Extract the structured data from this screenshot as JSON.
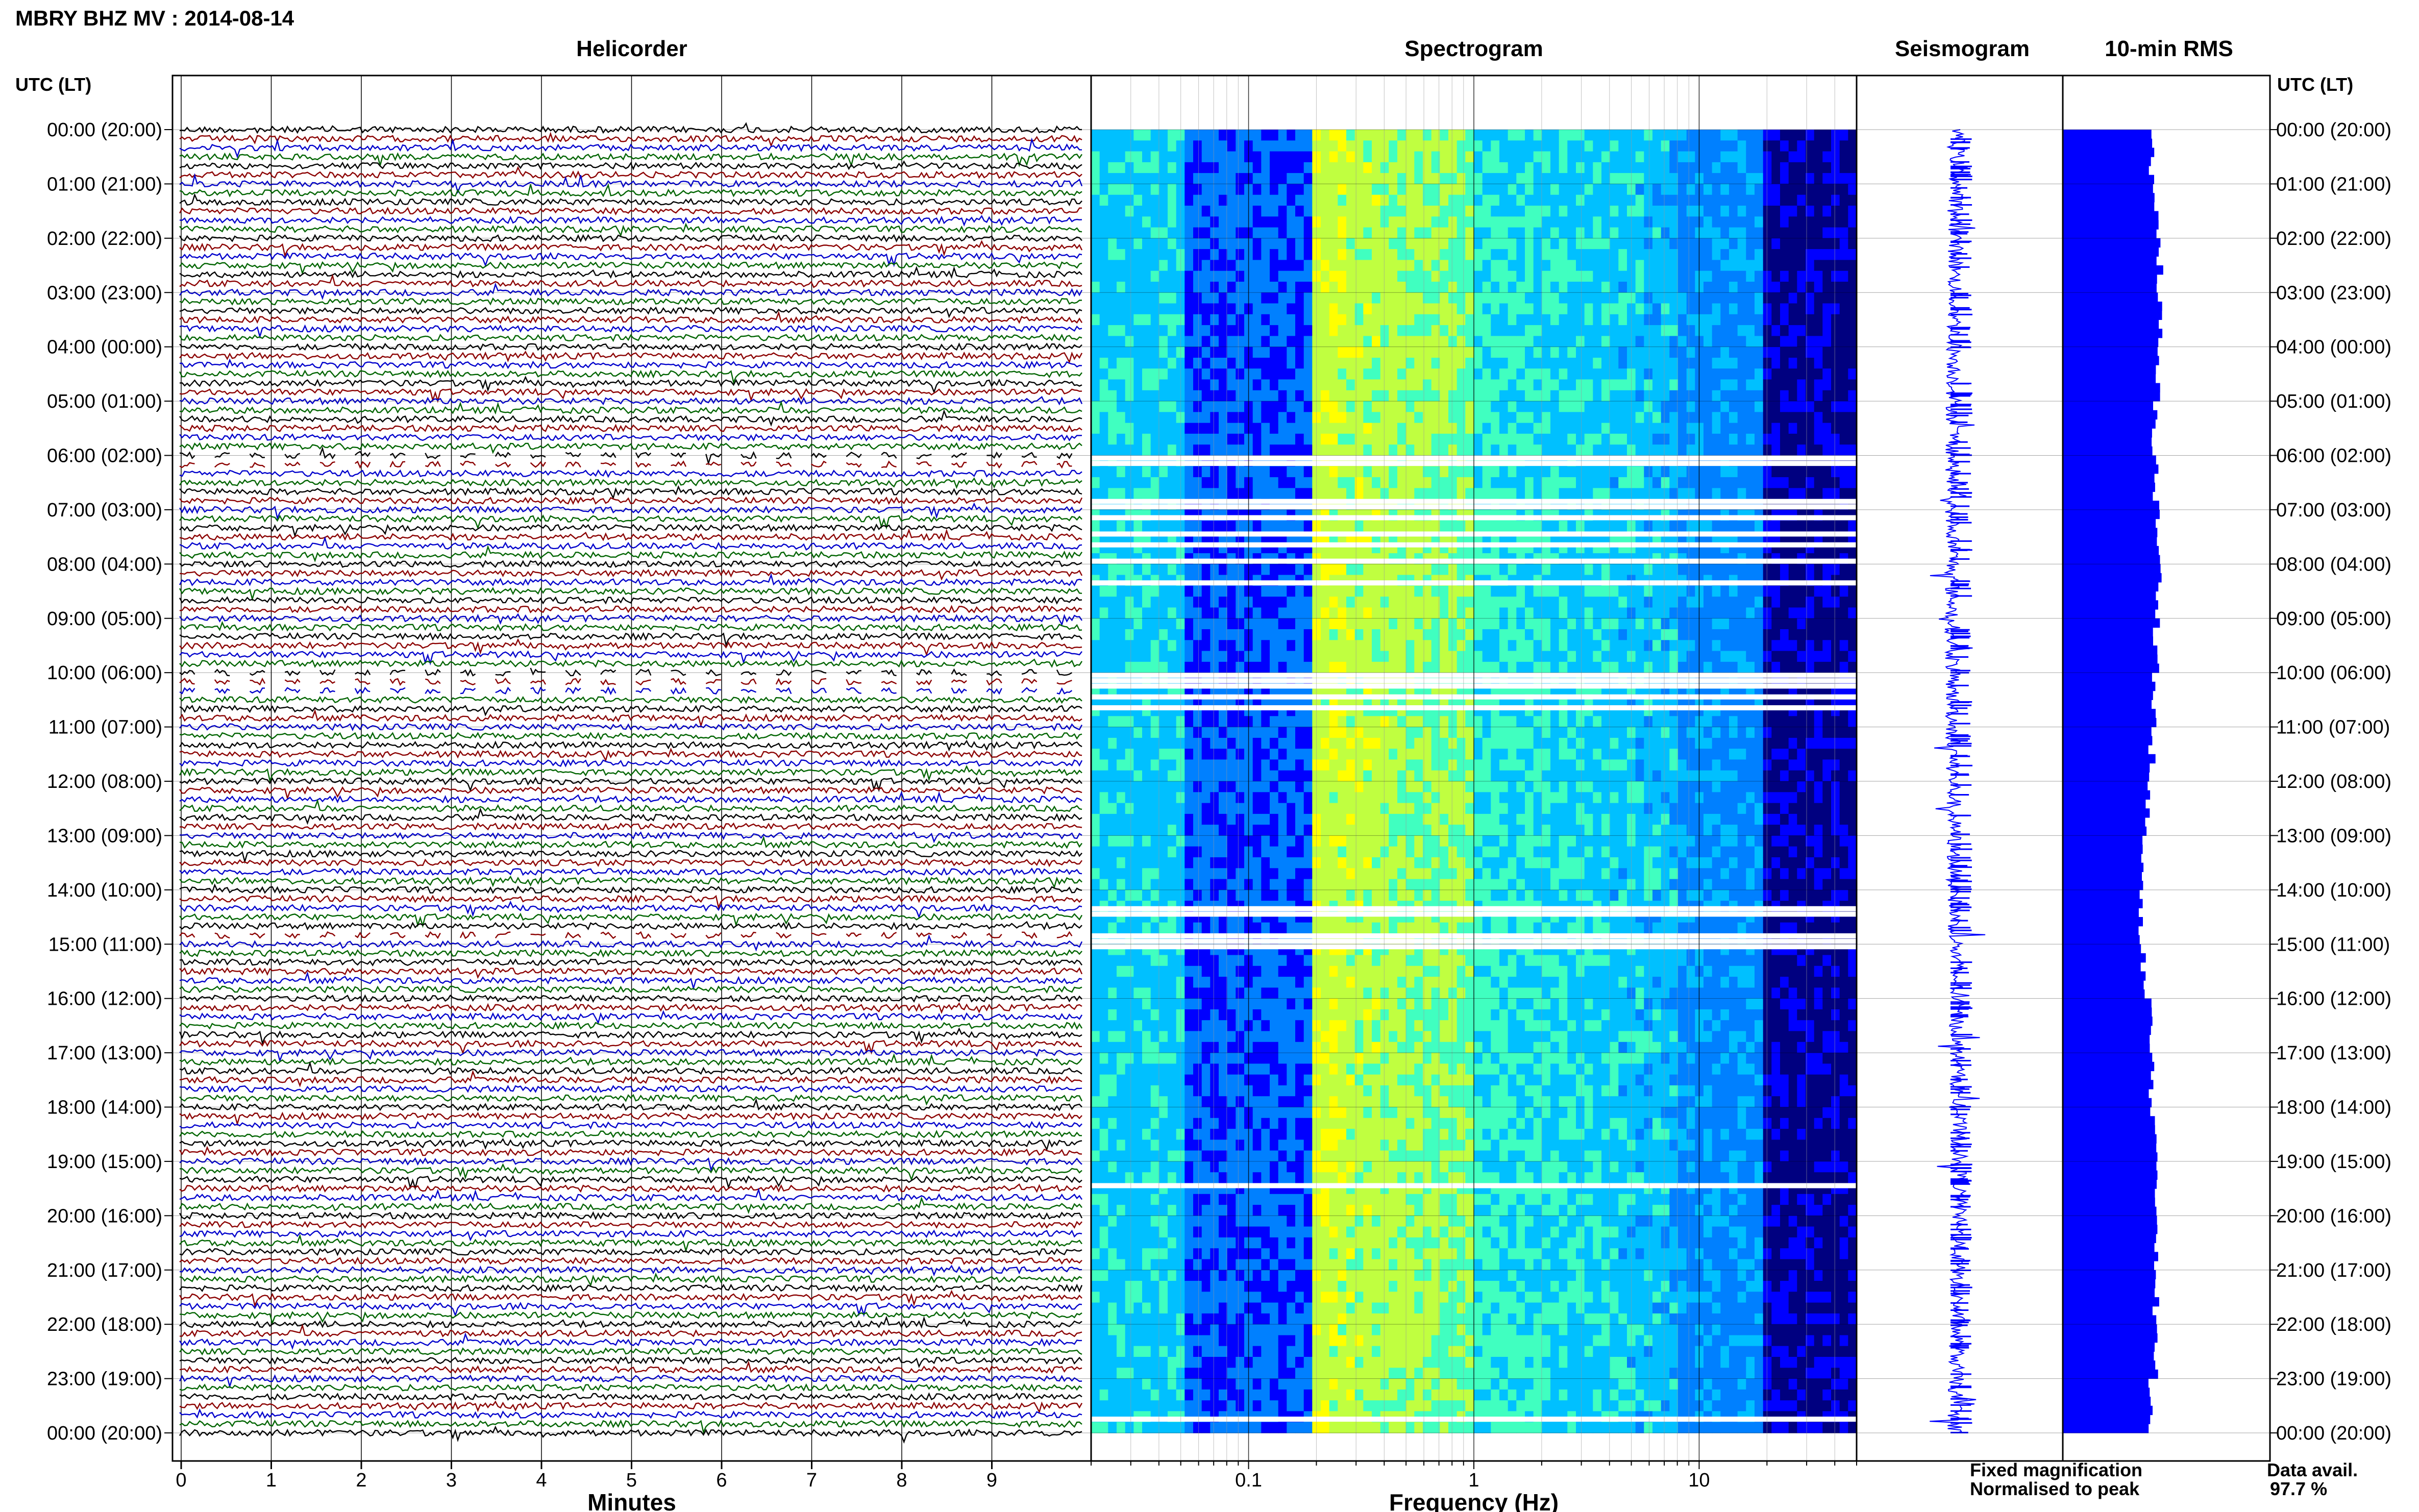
{
  "title": "MBRY BHZ MV : 2014-08-14",
  "panels": {
    "helicorder": "Helicorder",
    "spectrogram": "Spectrogram",
    "seismogram": "Seismogram",
    "rms": "10-min RMS"
  },
  "axis_labels": {
    "time_header_left": "UTC (LT)",
    "time_header_right": "UTC (LT)",
    "minutes": "Minutes",
    "frequency": "Frequency (Hz)"
  },
  "footer": {
    "fixed_magnification": "Fixed magnification",
    "normalised_to_peak": "Normalised to peak",
    "data_avail_label": "Data avail.",
    "data_avail_value": "97.7 %"
  },
  "colors": {
    "trace_black": "#000000",
    "trace_red": "#8b0000",
    "trace_blue": "#0000cc",
    "trace_green": "#006400",
    "rms_blue": "#0000ff",
    "legend_blue": "#0000ff",
    "legend_red": "#ff0000"
  },
  "chart_data": [
    {
      "type": "line",
      "title": "Helicorder",
      "xlabel": "Minutes",
      "x_ticks": [
        "0",
        "1",
        "2",
        "3",
        "4",
        "5",
        "6",
        "7",
        "8",
        "9"
      ],
      "xlim": [
        0,
        10
      ],
      "trace_colour_cycle": [
        "black",
        "red",
        "blue",
        "green"
      ],
      "rows_per_hour": 6,
      "hour_ticks": [
        "00:00 (20:00)",
        "01:00 (21:00)",
        "02:00 (22:00)",
        "03:00 (23:00)",
        "04:00 (00:00)",
        "05:00 (01:00)",
        "06:00 (02:00)",
        "07:00 (03:00)",
        "08:00 (04:00)",
        "09:00 (05:00)",
        "10:00 (06:00)",
        "11:00 (07:00)",
        "12:00 (08:00)",
        "13:00 (09:00)",
        "14:00 (10:00)",
        "15:00 (11:00)",
        "16:00 (12:00)",
        "17:00 (13:00)",
        "18:00 (14:00)",
        "19:00 (15:00)",
        "20:00 (16:00)",
        "21:00 (17:00)",
        "22:00 (18:00)",
        "23:00 (19:00)",
        "00:00 (20:00)"
      ],
      "data_gaps_hours": [
        [
          6.0,
          6.3
        ],
        [
          10.0,
          10.4
        ],
        [
          14.8,
          15.0
        ]
      ]
    },
    {
      "type": "heatmap",
      "title": "Spectrogram",
      "xlabel": "Frequency (Hz)",
      "x_scale": "log",
      "xlim": [
        0.02,
        50
      ],
      "x_ticks": [
        "0.1",
        "1",
        "10"
      ],
      "colormap": [
        "#000080",
        "#0000ff",
        "#0080ff",
        "#00c0ff",
        "#40ffc0",
        "#c0ff40",
        "#ffff00"
      ],
      "peak_band_hz": [
        0.2,
        1.0
      ],
      "gap_hours": [
        6.0,
        6.1,
        6.8,
        6.9,
        7.1,
        7.4,
        7.6,
        7.9,
        8.3,
        10.0,
        10.1,
        10.2,
        10.4,
        10.6,
        14.3,
        14.4,
        14.8,
        14.9,
        15.0,
        19.4,
        23.7
      ]
    },
    {
      "type": "line",
      "title": "Seismogram",
      "description_free": true
    },
    {
      "type": "bar",
      "title": "10-min RMS",
      "orientation": "horizontal",
      "interval_minutes": 10,
      "relative_level": [
        0.9,
        0.95,
        0.98,
        0.97,
        0.95,
        0.93,
        0.94,
        0.96,
        0.97,
        0.95,
        0.92,
        0.9,
        0.85,
        0.8,
        0.78,
        0.82,
        0.88,
        0.9,
        0.92,
        0.95,
        0.96,
        0.94,
        0.93,
        0.9
      ]
    }
  ]
}
